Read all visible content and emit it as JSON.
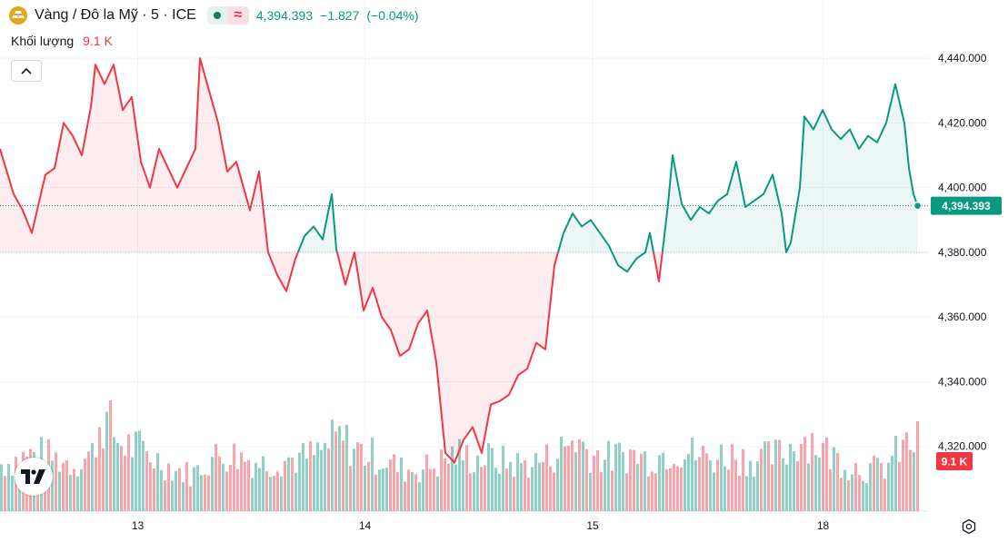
{
  "header": {
    "symbol": "Vàng / Đô la Mỹ · 5 · ICE",
    "last": "4,394.393",
    "change": "−1.827",
    "change_pct": "(−0.04%)",
    "badge_wave": "≈",
    "icon": "gold-symbol-icon"
  },
  "volume_legend": {
    "label": "Khối lượng",
    "value": "9.1 K"
  },
  "colors": {
    "up": "#089981",
    "down": "#f23645",
    "fill_up": "rgba(8,153,129,0.08)",
    "fill_down": "rgba(242,54,69,0.09)",
    "vol_up": "rgba(8,153,129,0.45)",
    "vol_down": "rgba(242,54,69,0.45)"
  },
  "chart_data": {
    "type": "area",
    "baseline": 4380,
    "last_value": 4394.393,
    "last_label": "4,394.393",
    "volume_label": "9.1 K",
    "ylim": [
      4300,
      4458
    ],
    "y_ticks": [
      {
        "v": 4320,
        "label": "4,320.000"
      },
      {
        "v": 4340,
        "label": "4,340.000"
      },
      {
        "v": 4360,
        "label": "4,360.000"
      },
      {
        "v": 4380,
        "label": "4,380.000"
      },
      {
        "v": 4400,
        "label": "4,400.000"
      },
      {
        "v": 4420,
        "label": "4,420.000"
      },
      {
        "v": 4440,
        "label": "4,440.000"
      }
    ],
    "x_ticks": [
      {
        "t": 30.3,
        "label": "13"
      },
      {
        "t": 80.3,
        "label": "14"
      },
      {
        "t": 130.4,
        "label": "15"
      },
      {
        "t": 181.1,
        "label": "18"
      }
    ],
    "xlim": [
      0,
      220
    ],
    "t_end": 201.9,
    "series": [
      {
        "t": 0,
        "v": 4412
      },
      {
        "t": 3,
        "v": 4398
      },
      {
        "t": 5,
        "v": 4393
      },
      {
        "t": 7,
        "v": 4386
      },
      {
        "t": 8,
        "v": 4392
      },
      {
        "t": 10,
        "v": 4404
      },
      {
        "t": 12,
        "v": 4406
      },
      {
        "t": 14,
        "v": 4420
      },
      {
        "t": 16,
        "v": 4416
      },
      {
        "t": 18,
        "v": 4410
      },
      {
        "t": 20,
        "v": 4425
      },
      {
        "t": 21,
        "v": 4438
      },
      {
        "t": 23,
        "v": 4432
      },
      {
        "t": 25,
        "v": 4438
      },
      {
        "t": 27,
        "v": 4424
      },
      {
        "t": 29,
        "v": 4428
      },
      {
        "t": 31,
        "v": 4408
      },
      {
        "t": 33,
        "v": 4400
      },
      {
        "t": 35,
        "v": 4412
      },
      {
        "t": 37,
        "v": 4406
      },
      {
        "t": 39,
        "v": 4400
      },
      {
        "t": 41,
        "v": 4406
      },
      {
        "t": 43,
        "v": 4412
      },
      {
        "t": 44,
        "v": 4440
      },
      {
        "t": 46,
        "v": 4430
      },
      {
        "t": 48,
        "v": 4420
      },
      {
        "t": 50,
        "v": 4405
      },
      {
        "t": 52,
        "v": 4408
      },
      {
        "t": 54,
        "v": 4398
      },
      {
        "t": 55,
        "v": 4393
      },
      {
        "t": 57,
        "v": 4405
      },
      {
        "t": 59,
        "v": 4380
      },
      {
        "t": 61,
        "v": 4373
      },
      {
        "t": 63,
        "v": 4368
      },
      {
        "t": 65,
        "v": 4378
      },
      {
        "t": 67,
        "v": 4385
      },
      {
        "t": 69,
        "v": 4388
      },
      {
        "t": 71,
        "v": 4384
      },
      {
        "t": 73,
        "v": 4398
      },
      {
        "t": 74,
        "v": 4381
      },
      {
        "t": 76,
        "v": 4370
      },
      {
        "t": 78,
        "v": 4380
      },
      {
        "t": 80,
        "v": 4362
      },
      {
        "t": 82,
        "v": 4369
      },
      {
        "t": 84,
        "v": 4360
      },
      {
        "t": 86,
        "v": 4356
      },
      {
        "t": 88,
        "v": 4348
      },
      {
        "t": 90,
        "v": 4350
      },
      {
        "t": 92,
        "v": 4358
      },
      {
        "t": 94,
        "v": 4362
      },
      {
        "t": 96,
        "v": 4346
      },
      {
        "t": 98,
        "v": 4318
      },
      {
        "t": 100,
        "v": 4315
      },
      {
        "t": 102,
        "v": 4322
      },
      {
        "t": 104,
        "v": 4326
      },
      {
        "t": 106,
        "v": 4318
      },
      {
        "t": 108,
        "v": 4333
      },
      {
        "t": 110,
        "v": 4334
      },
      {
        "t": 112,
        "v": 4336
      },
      {
        "t": 114,
        "v": 4342
      },
      {
        "t": 116,
        "v": 4344
      },
      {
        "t": 118,
        "v": 4352
      },
      {
        "t": 120,
        "v": 4350
      },
      {
        "t": 122,
        "v": 4376
      },
      {
        "t": 124,
        "v": 4386
      },
      {
        "t": 126,
        "v": 4392
      },
      {
        "t": 128,
        "v": 4388
      },
      {
        "t": 130,
        "v": 4390
      },
      {
        "t": 132,
        "v": 4386
      },
      {
        "t": 134,
        "v": 4382
      },
      {
        "t": 136,
        "v": 4376
      },
      {
        "t": 138,
        "v": 4374
      },
      {
        "t": 140,
        "v": 4378
      },
      {
        "t": 142,
        "v": 4380
      },
      {
        "t": 143,
        "v": 4386
      },
      {
        "t": 145,
        "v": 4371
      },
      {
        "t": 147,
        "v": 4395
      },
      {
        "t": 148,
        "v": 4410
      },
      {
        "t": 150,
        "v": 4395
      },
      {
        "t": 152,
        "v": 4390
      },
      {
        "t": 154,
        "v": 4394
      },
      {
        "t": 156,
        "v": 4392
      },
      {
        "t": 158,
        "v": 4396
      },
      {
        "t": 160,
        "v": 4398
      },
      {
        "t": 162,
        "v": 4408
      },
      {
        "t": 164,
        "v": 4394
      },
      {
        "t": 166,
        "v": 4396
      },
      {
        "t": 168,
        "v": 4398
      },
      {
        "t": 170,
        "v": 4404
      },
      {
        "t": 172,
        "v": 4392
      },
      {
        "t": 173,
        "v": 4380
      },
      {
        "t": 174,
        "v": 4383
      },
      {
        "t": 176,
        "v": 4400
      },
      {
        "t": 177,
        "v": 4422
      },
      {
        "t": 179,
        "v": 4418
      },
      {
        "t": 181,
        "v": 4424
      },
      {
        "t": 183,
        "v": 4418
      },
      {
        "t": 185,
        "v": 4415
      },
      {
        "t": 187,
        "v": 4418
      },
      {
        "t": 189,
        "v": 4412
      },
      {
        "t": 191,
        "v": 4416
      },
      {
        "t": 193,
        "v": 4414
      },
      {
        "t": 195,
        "v": 4420
      },
      {
        "t": 197,
        "v": 4432
      },
      {
        "t": 198,
        "v": 4426
      },
      {
        "t": 199,
        "v": 4420
      },
      {
        "t": 200,
        "v": 4406
      },
      {
        "t": 201,
        "v": 4398
      },
      {
        "t": 201.9,
        "v": 4394.393
      }
    ],
    "volume": [
      {
        "t": 0,
        "v": 0.45
      },
      {
        "t": 4,
        "v": 0.5
      },
      {
        "t": 8,
        "v": 0.55
      },
      {
        "t": 12,
        "v": 0.5
      },
      {
        "t": 16,
        "v": 0.45
      },
      {
        "t": 20,
        "v": 0.55
      },
      {
        "t": 22,
        "v": 0.9
      },
      {
        "t": 24,
        "v": 0.8
      },
      {
        "t": 26,
        "v": 0.65
      },
      {
        "t": 30,
        "v": 0.6
      },
      {
        "t": 34,
        "v": 0.5
      },
      {
        "t": 38,
        "v": 0.4
      },
      {
        "t": 42,
        "v": 0.35
      },
      {
        "t": 46,
        "v": 0.5
      },
      {
        "t": 50,
        "v": 0.55
      },
      {
        "t": 54,
        "v": 0.5
      },
      {
        "t": 58,
        "v": 0.45
      },
      {
        "t": 62,
        "v": 0.5
      },
      {
        "t": 66,
        "v": 0.5
      },
      {
        "t": 70,
        "v": 0.55
      },
      {
        "t": 74,
        "v": 0.7
      },
      {
        "t": 76,
        "v": 0.65
      },
      {
        "t": 80,
        "v": 0.55
      },
      {
        "t": 84,
        "v": 0.5
      },
      {
        "t": 88,
        "v": 0.4
      },
      {
        "t": 92,
        "v": 0.4
      },
      {
        "t": 96,
        "v": 0.45
      },
      {
        "t": 100,
        "v": 0.55
      },
      {
        "t": 104,
        "v": 0.5
      },
      {
        "t": 108,
        "v": 0.5
      },
      {
        "t": 112,
        "v": 0.45
      },
      {
        "t": 116,
        "v": 0.45
      },
      {
        "t": 120,
        "v": 0.5
      },
      {
        "t": 124,
        "v": 0.6
      },
      {
        "t": 126,
        "v": 0.7
      },
      {
        "t": 130,
        "v": 0.55
      },
      {
        "t": 134,
        "v": 0.5
      },
      {
        "t": 138,
        "v": 0.55
      },
      {
        "t": 142,
        "v": 0.5
      },
      {
        "t": 146,
        "v": 0.55
      },
      {
        "t": 148,
        "v": 0.6
      },
      {
        "t": 152,
        "v": 0.55
      },
      {
        "t": 156,
        "v": 0.5
      },
      {
        "t": 160,
        "v": 0.55
      },
      {
        "t": 164,
        "v": 0.5
      },
      {
        "t": 168,
        "v": 0.5
      },
      {
        "t": 172,
        "v": 0.55
      },
      {
        "t": 176,
        "v": 0.7
      },
      {
        "t": 178,
        "v": 0.7
      },
      {
        "t": 182,
        "v": 0.55
      },
      {
        "t": 186,
        "v": 0.45
      },
      {
        "t": 190,
        "v": 0.4
      },
      {
        "t": 194,
        "v": 0.4
      },
      {
        "t": 198,
        "v": 0.6
      },
      {
        "t": 201,
        "v": 0.65
      }
    ]
  }
}
